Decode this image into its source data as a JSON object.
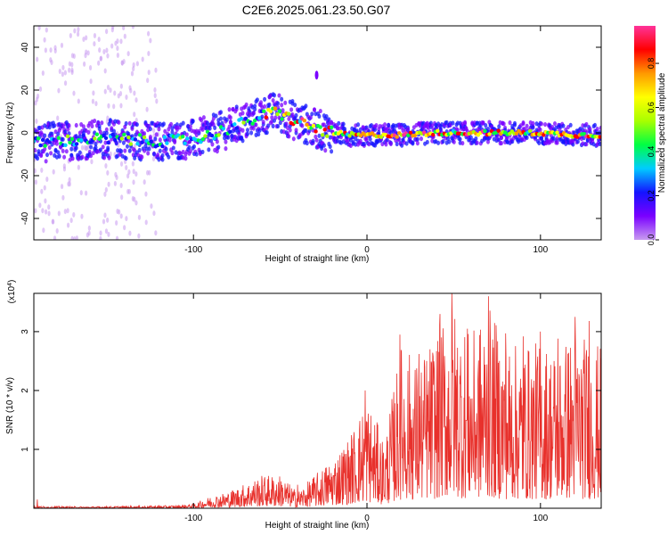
{
  "title": "C2E6.2025.061.23.50.G07",
  "chart_data": [
    {
      "type": "heatmap",
      "ylabel": "Frequency (Hz)",
      "xlabel": "Height of straight line (km)",
      "xlim": [
        -192,
        135
      ],
      "ylim": [
        -50,
        50
      ],
      "xticks": [
        -100,
        0,
        100
      ],
      "yticks": [
        -40,
        -20,
        0,
        20,
        40
      ],
      "colorbar": {
        "label": "Normalized spectral amplitude",
        "range": [
          0,
          0.97
        ],
        "ticks": [
          "0.0",
          "0.2",
          "0.4",
          "0.6",
          "0.8"
        ],
        "tick_values": [
          0.0,
          0.2,
          0.4,
          0.6,
          0.8
        ],
        "colors": [
          "#c89bf0",
          "#7a00ff",
          "#1414ff",
          "#00ccff",
          "#00ff44",
          "#a8ff00",
          "#ffff00",
          "#ff9900",
          "#ff0000",
          "#ff3399"
        ]
      },
      "ridge": {
        "x": [
          -192,
          -180,
          -160,
          -140,
          -120,
          -100,
          -90,
          -80,
          -70,
          -60,
          -52,
          -45,
          -40,
          -35,
          -30,
          -25,
          -20,
          -10,
          0,
          20,
          40,
          60,
          80,
          100,
          120,
          135
        ],
        "y": [
          -5,
          -4,
          -3,
          -3,
          -4,
          -3,
          -1,
          2,
          5,
          8,
          10,
          7,
          5,
          4,
          2,
          1,
          0,
          -1,
          -1,
          -1,
          0,
          0,
          0,
          0,
          -1,
          -1
        ]
      },
      "features": {
        "noise_band_x": [
          -192,
          -120
        ],
        "isolated_blob": {
          "x": -29,
          "y": 27
        }
      }
    },
    {
      "type": "line",
      "ylabel": "SNR (10 * v/v)",
      "xlabel": "Height of straight line (km)",
      "y_multiplier": "(x10^4)",
      "xlim": [
        -192,
        135
      ],
      "ylim": [
        0,
        3.65
      ],
      "xticks": [
        -100,
        0,
        100
      ],
      "yticks": [
        1,
        2,
        3
      ],
      "color": "#e8312c",
      "envelope": {
        "x": [
          -192,
          -160,
          -140,
          -110,
          -100,
          -90,
          -80,
          -70,
          -60,
          -50,
          -40,
          -30,
          -20,
          -10,
          0,
          10,
          20,
          30,
          40,
          50,
          60,
          70,
          80,
          90,
          100,
          110,
          120,
          135
        ],
        "y": [
          0.04,
          0.03,
          0.04,
          0.05,
          0.08,
          0.22,
          0.3,
          0.45,
          0.6,
          0.6,
          0.3,
          0.6,
          0.9,
          1.3,
          2.0,
          1.2,
          3.0,
          2.6,
          3.2,
          3.65,
          3.1,
          3.6,
          3.0,
          2.9,
          3.0,
          2.9,
          3.2,
          2.9
        ]
      },
      "peaks": [
        {
          "x": -190,
          "y": 0.15
        },
        {
          "x": -40,
          "y": 0.4
        },
        {
          "x": -1,
          "y": 2.0
        },
        {
          "x": 19,
          "y": 2.95
        },
        {
          "x": 30,
          "y": 2.62
        },
        {
          "x": 42,
          "y": 3.3
        },
        {
          "x": 49,
          "y": 3.65
        },
        {
          "x": 58,
          "y": 3.05
        },
        {
          "x": 70,
          "y": 3.6
        },
        {
          "x": 80,
          "y": 2.97
        },
        {
          "x": 90,
          "y": 2.92
        },
        {
          "x": 100,
          "y": 3.0
        },
        {
          "x": 110,
          "y": 2.88
        },
        {
          "x": 120,
          "y": 3.25
        },
        {
          "x": 128,
          "y": 3.18
        }
      ]
    }
  ]
}
